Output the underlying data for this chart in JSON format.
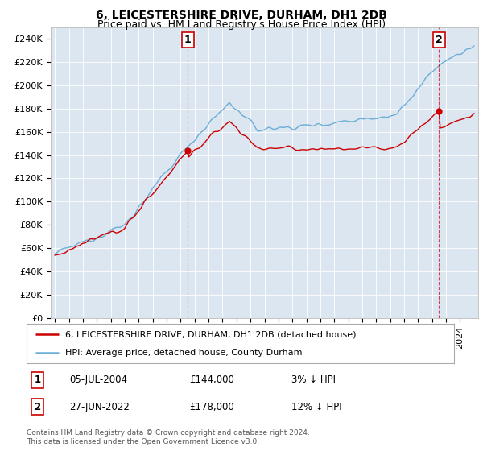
{
  "title": "6, LEICESTERSHIRE DRIVE, DURHAM, DH1 2DB",
  "subtitle": "Price paid vs. HM Land Registry's House Price Index (HPI)",
  "ylabel_ticks": [
    "£0",
    "£20K",
    "£40K",
    "£60K",
    "£80K",
    "£100K",
    "£120K",
    "£140K",
    "£160K",
    "£180K",
    "£200K",
    "£220K",
    "£240K"
  ],
  "ytick_vals": [
    0,
    20000,
    40000,
    60000,
    80000,
    100000,
    120000,
    140000,
    160000,
    180000,
    200000,
    220000,
    240000
  ],
  "ylim": [
    0,
    250000
  ],
  "xlim_start": 1994.7,
  "xlim_end": 2025.3,
  "plot_bg_color": "#dce6f1",
  "hpi_color": "#6baed6",
  "price_color": "#cc0000",
  "marker1_x": 2004.5,
  "marker1_y": 144000,
  "marker2_x": 2022.5,
  "marker2_y": 178000,
  "legend_line1": "6, LEICESTERSHIRE DRIVE, DURHAM, DH1 2DB (detached house)",
  "legend_line2": "HPI: Average price, detached house, County Durham",
  "sale1_date": "05-JUL-2004",
  "sale1_price": "£144,000",
  "sale1_hpi": "3% ↓ HPI",
  "sale2_date": "27-JUN-2022",
  "sale2_price": "£178,000",
  "sale2_hpi": "12% ↓ HPI",
  "footnote": "Contains HM Land Registry data © Crown copyright and database right 2024.\nThis data is licensed under the Open Government Licence v3.0.",
  "title_fontsize": 10,
  "subtitle_fontsize": 9,
  "tick_fontsize": 8,
  "legend_fontsize": 8,
  "table_fontsize": 8.5
}
